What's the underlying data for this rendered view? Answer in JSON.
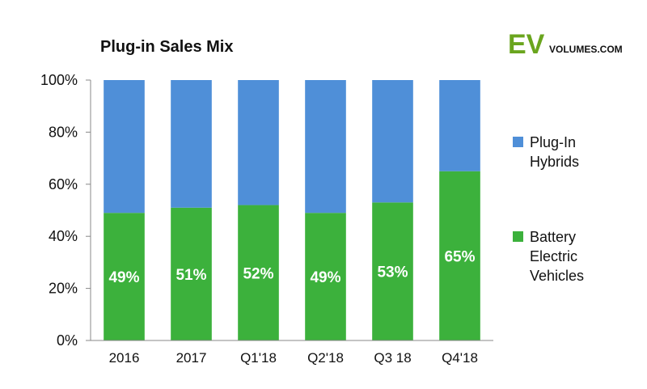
{
  "chart_data": {
    "type": "bar",
    "stacked": true,
    "title": "Plug-in Sales Mix",
    "categories": [
      "2016",
      "2017",
      "Q1'18",
      "Q2'18",
      "Q3 18",
      "Q4'18"
    ],
    "series": [
      {
        "name": "Battery Electric Vehicles",
        "values": [
          49,
          51,
          52,
          49,
          53,
          65
        ],
        "data_labels": [
          "49%",
          "51%",
          "52%",
          "49%",
          "53%",
          "65%"
        ],
        "color": "#3cb13c"
      },
      {
        "name": "Plug-In Hybrids",
        "values": [
          51,
          49,
          48,
          51,
          47,
          35
        ],
        "color": "#4f8fd8"
      }
    ],
    "ylim": [
      0,
      100
    ],
    "yticks": [
      "0%",
      "20%",
      "40%",
      "60%",
      "80%",
      "100%"
    ],
    "ytick_values": [
      0,
      20,
      40,
      60,
      80,
      100
    ],
    "grid": false,
    "legend_position": "right",
    "legend": [
      {
        "lines": [
          "Plug-In",
          "Hybrids"
        ],
        "color": "#4f8fd8"
      },
      {
        "lines": [
          "Battery",
          "Electric",
          "Vehicles"
        ],
        "color": "#3cb13c"
      }
    ]
  },
  "logo": {
    "ev": "EV",
    "sub": "VOLUMES.COM",
    "ev_color": "#6aa51e"
  },
  "colors": {
    "axis": "#888888"
  }
}
